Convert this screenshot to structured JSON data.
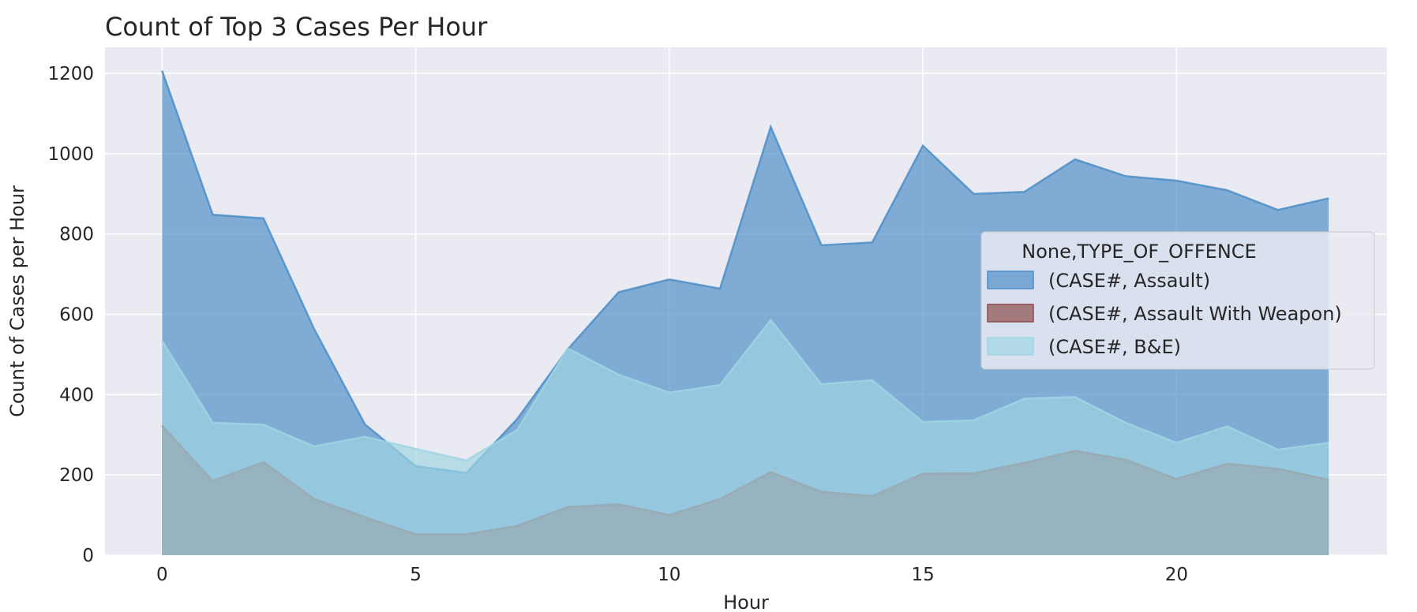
{
  "chart_data": {
    "type": "area",
    "title": "Count of Top 3 Cases Per Hour",
    "xlabel": "Hour",
    "ylabel": "Count of Cases per Hour",
    "x": [
      0,
      1,
      2,
      3,
      4,
      5,
      6,
      7,
      8,
      9,
      10,
      11,
      12,
      13,
      14,
      15,
      16,
      17,
      18,
      19,
      20,
      21,
      22,
      23
    ],
    "xlim": [
      -1.125,
      24.15
    ],
    "ylim": [
      0,
      1265
    ],
    "xticks": [
      0,
      5,
      10,
      15,
      20
    ],
    "yticks": [
      0,
      200,
      400,
      600,
      800,
      1000,
      1200
    ],
    "grid": true,
    "stacked": false,
    "legend": {
      "title": "None,TYPE_OF_OFFENCE",
      "placement": "center-right"
    },
    "series": [
      {
        "name": "(CASE#, Assault)",
        "color": "#4c8ec7",
        "values": [
          1207,
          848,
          839,
          563,
          326,
          222,
          205,
          339,
          513,
          655,
          687,
          664,
          1067,
          772,
          779,
          1020,
          900,
          905,
          986,
          944,
          933,
          909,
          860,
          889
        ]
      },
      {
        "name": "(CASE#, Assault With Weapon)",
        "color": "#8c4a48",
        "values": [
          323,
          185,
          232,
          140,
          95,
          52,
          52,
          73,
          120,
          127,
          100,
          140,
          207,
          158,
          147,
          203,
          204,
          230,
          260,
          238,
          190,
          228,
          215,
          188
        ]
      },
      {
        "name": "(CASE#, B&E)",
        "color": "#9fd5e3",
        "values": [
          534,
          330,
          325,
          271,
          295,
          265,
          236,
          312,
          515,
          450,
          405,
          424,
          586,
          426,
          436,
          332,
          336,
          390,
          394,
          330,
          280,
          321,
          263,
          280
        ]
      }
    ]
  }
}
